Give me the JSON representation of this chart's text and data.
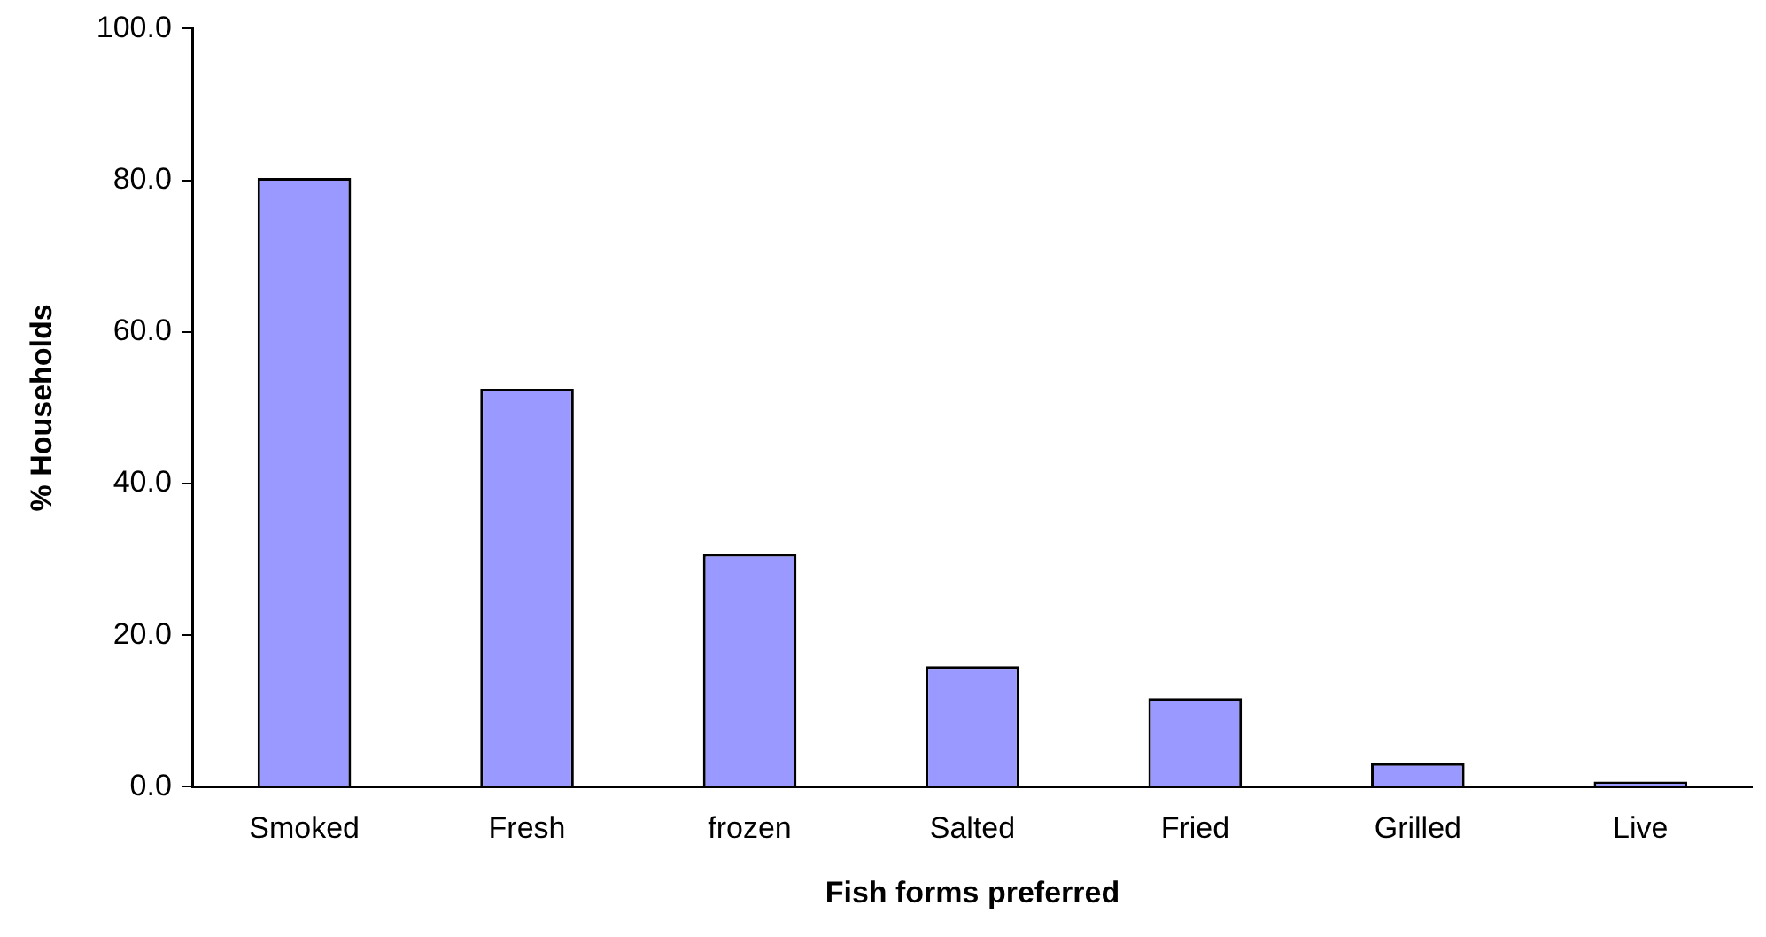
{
  "chart_data": {
    "type": "bar",
    "xlabel": "Fish forms preferred",
    "ylabel": "% Households",
    "categories": [
      "Smoked",
      "Fresh",
      "frozen",
      "Salted",
      "Fried",
      "Grilled",
      "Live"
    ],
    "values": [
      80.3,
      52.5,
      30.7,
      15.9,
      11.7,
      3.1,
      0.7
    ],
    "color": "#9999ff",
    "ylim": [
      0,
      100
    ],
    "yticks": [
      {
        "value": 0,
        "label": "0.0"
      },
      {
        "value": 20,
        "label": "20.0"
      },
      {
        "value": 40,
        "label": "40.0"
      },
      {
        "value": 60,
        "label": "60.0"
      },
      {
        "value": 80,
        "label": "80.0"
      },
      {
        "value": 100,
        "label": "100.0"
      }
    ],
    "grid": false,
    "legend": false
  }
}
